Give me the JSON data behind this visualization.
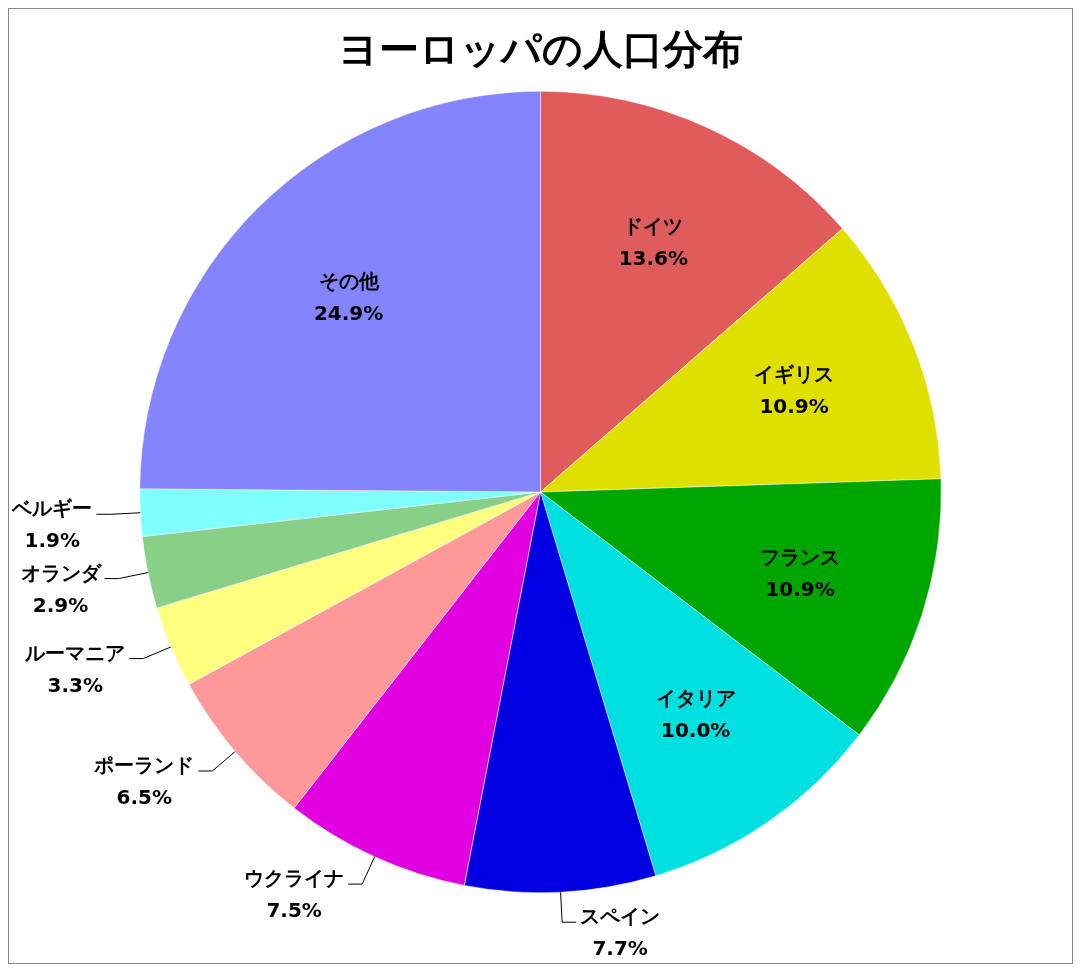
{
  "chart_data": {
    "type": "pie",
    "title": "ヨーロッパの人口分布",
    "categories": [
      "ドイツ",
      "イギリス",
      "フランス",
      "イタリア",
      "スペイン",
      "ウクライナ",
      "ポーランド",
      "ルーマニア",
      "オランダ",
      "ベルギー",
      "その他"
    ],
    "values": [
      13.6,
      10.9,
      10.9,
      10.0,
      7.7,
      7.5,
      6.5,
      3.3,
      2.9,
      1.9,
      24.9
    ],
    "colors": [
      "#e05c5c",
      "#e0e000",
      "#00a600",
      "#00e0e0",
      "#0000e0",
      "#e000e0",
      "#ff9999",
      "#ffff80",
      "#88d088",
      "#80ffff",
      "#8484ff"
    ],
    "value_labels": [
      "13.6%",
      "10.9%",
      "10.9%",
      "10.0%",
      "7.7%",
      "7.5%",
      "6.5%",
      "3.3%",
      "2.9%",
      "1.9%",
      "24.9%"
    ],
    "legend": false
  }
}
